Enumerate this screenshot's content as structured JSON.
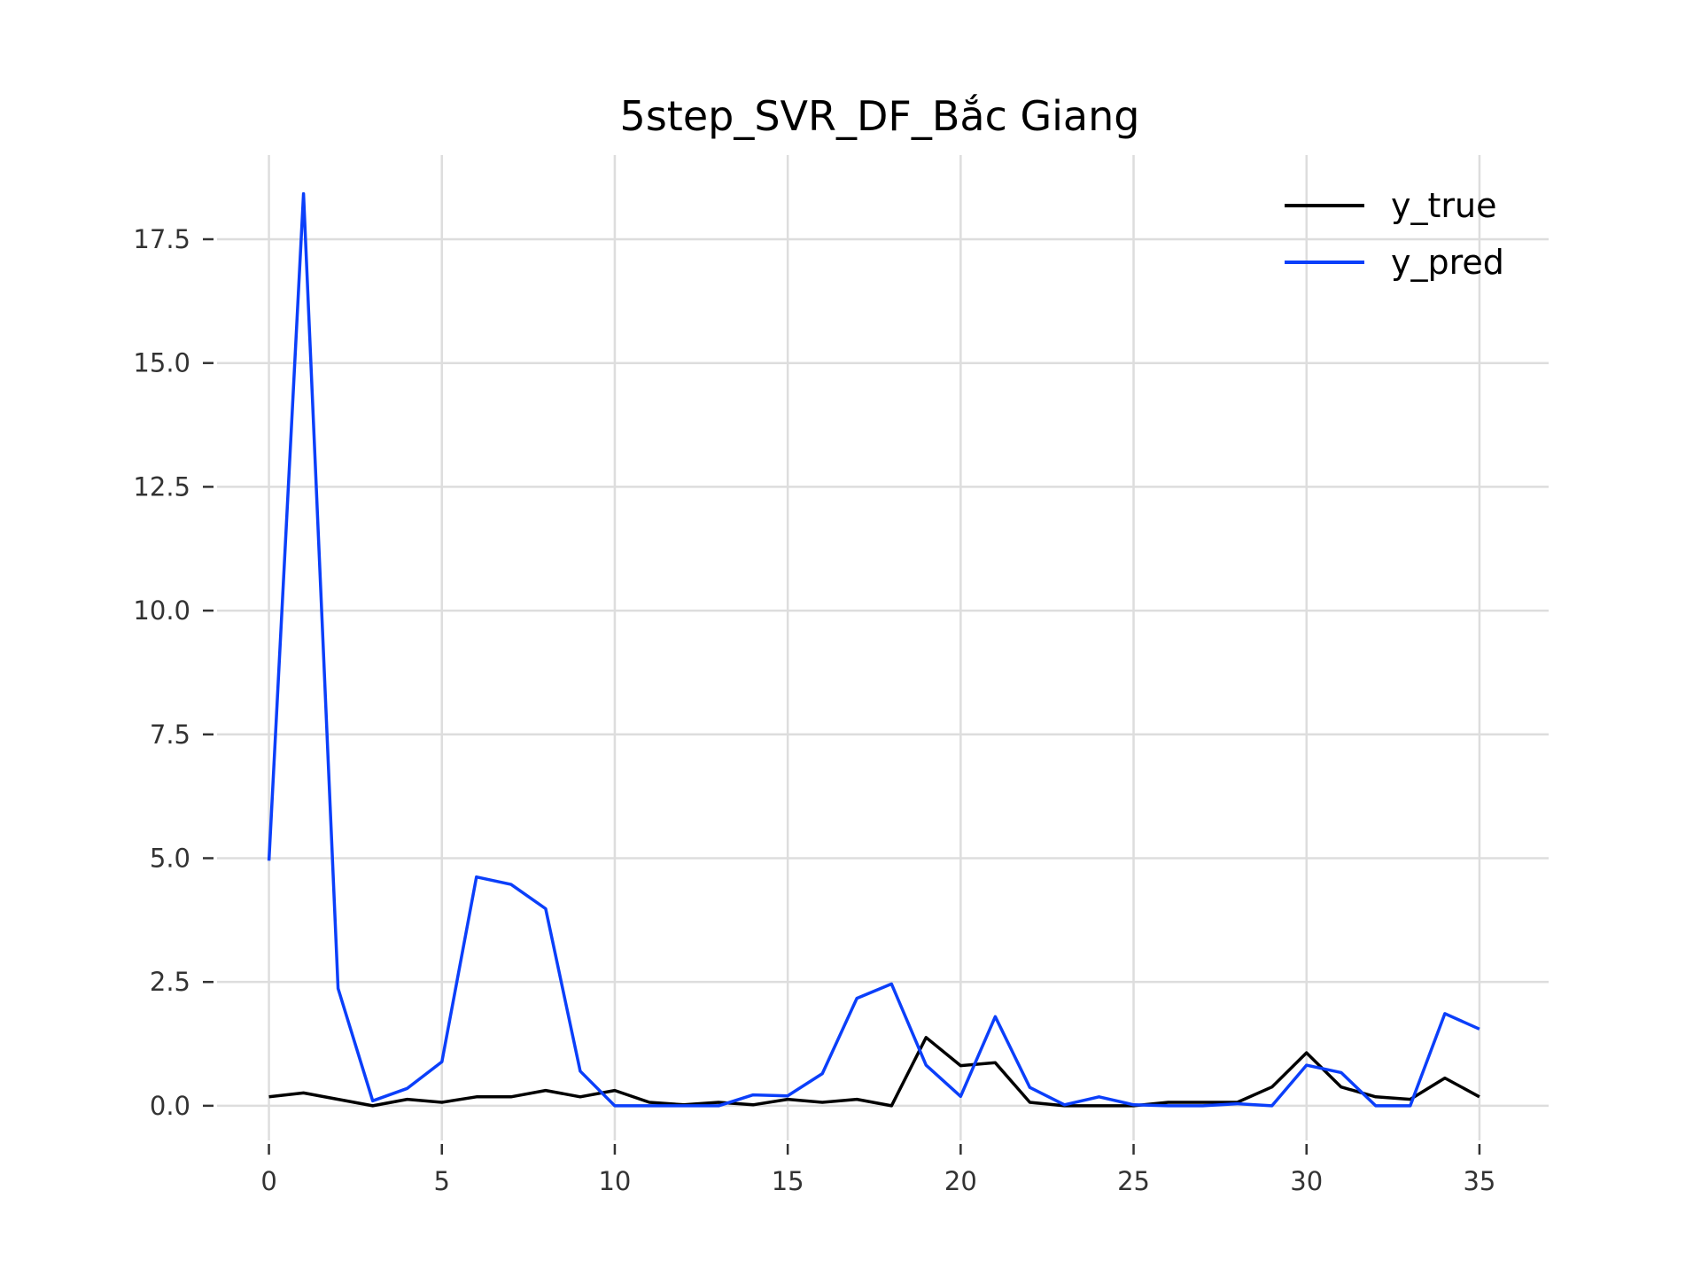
{
  "chart_data": {
    "type": "line",
    "title": "5step_SVR_DF_Bắc Giang",
    "xlabel": "",
    "ylabel": "",
    "x": [
      0,
      1,
      2,
      3,
      4,
      5,
      6,
      7,
      8,
      9,
      10,
      11,
      12,
      13,
      14,
      15,
      16,
      17,
      18,
      19,
      20,
      21,
      22,
      23,
      24,
      25,
      26,
      27,
      28,
      29,
      30,
      31,
      32,
      33,
      34,
      35
    ],
    "xlim": [
      -1.5,
      37
    ],
    "ylim": [
      -0.7,
      19.2
    ],
    "xticks": [
      0,
      5,
      10,
      15,
      20,
      25,
      30,
      35
    ],
    "yticks": [
      0.0,
      2.5,
      5.0,
      7.5,
      10.0,
      12.5,
      15.0,
      17.5
    ],
    "xtick_labels": [
      "0",
      "5",
      "10",
      "15",
      "20",
      "25",
      "30",
      "35"
    ],
    "ytick_labels": [
      "0.0",
      "2.5",
      "5.0",
      "7.5",
      "10.0",
      "12.5",
      "15.0",
      "17.5"
    ],
    "grid": true,
    "legend_position": "top-right",
    "series": [
      {
        "name": "y_true",
        "color": "#000000",
        "values": [
          0.18,
          0.26,
          0.13,
          0.0,
          0.13,
          0.07,
          0.18,
          0.18,
          0.31,
          0.18,
          0.31,
          0.07,
          0.02,
          0.07,
          0.02,
          0.13,
          0.07,
          0.13,
          0.0,
          1.38,
          0.81,
          0.87,
          0.07,
          0.0,
          0.0,
          0.0,
          0.07,
          0.07,
          0.07,
          0.38,
          1.07,
          0.38,
          0.18,
          0.13,
          0.56,
          0.18
        ]
      },
      {
        "name": "y_pred",
        "color": "#0b3ffa",
        "values": [
          4.95,
          18.42,
          2.37,
          0.1,
          0.35,
          0.89,
          4.62,
          4.47,
          3.98,
          0.7,
          0.0,
          0.0,
          0.0,
          0.0,
          0.22,
          0.2,
          0.65,
          2.17,
          2.46,
          0.82,
          0.19,
          1.8,
          0.37,
          0.02,
          0.18,
          0.02,
          0.0,
          0.0,
          0.04,
          0.0,
          0.82,
          0.67,
          0.0,
          0.0,
          1.86,
          1.55
        ]
      }
    ]
  }
}
